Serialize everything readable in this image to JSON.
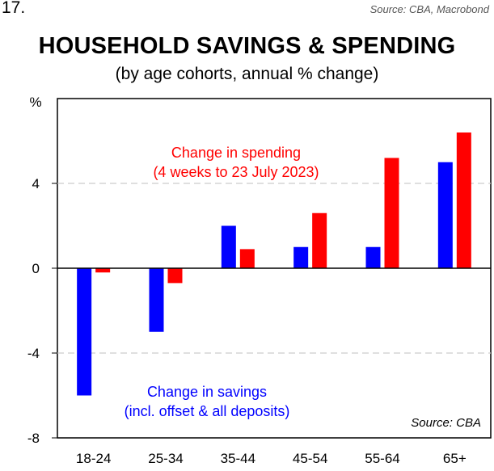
{
  "page": {
    "slide_number": "17.",
    "top_source": "Source: CBA, Macrobond"
  },
  "chart_data": {
    "type": "bar",
    "title": "HOUSEHOLD SAVINGS & SPENDING",
    "subtitle": "(by age cohorts, annual % change)",
    "ylabel": "%",
    "ylim": [
      -8,
      8
    ],
    "yticks": [
      "4",
      "0",
      "-4",
      "-8"
    ],
    "ytick_values": [
      4,
      0,
      -4,
      -8
    ],
    "gridlines": [
      4,
      -4
    ],
    "categories": [
      "18-24",
      "25-34",
      "35-44",
      "45-54",
      "55-64",
      "65+"
    ],
    "series": [
      {
        "name": "Change in savings",
        "color": "#0000ff",
        "values": [
          -6.0,
          -3.0,
          2.0,
          1.0,
          1.0,
          5.0
        ]
      },
      {
        "name": "Change in spending",
        "color": "#ff0000",
        "values": [
          -0.2,
          -0.7,
          0.9,
          2.6,
          5.2,
          6.4
        ]
      }
    ],
    "annotations": {
      "spending_line1": "Change in spending",
      "spending_line2": "(4 weeks to 23 July 2023)",
      "savings_line1": "Change in savings",
      "savings_line2": "(incl. offset & all deposits)",
      "inner_source": "Source: CBA"
    }
  }
}
